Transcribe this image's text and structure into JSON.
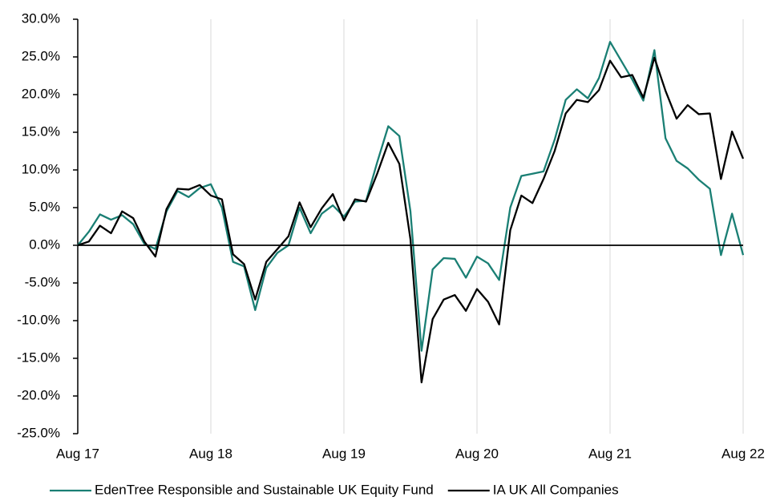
{
  "chart_data": {
    "type": "line",
    "categories": [
      "Aug 17",
      null,
      null,
      null,
      null,
      null,
      null,
      null,
      null,
      null,
      null,
      null,
      "Aug 18",
      null,
      null,
      null,
      null,
      null,
      null,
      null,
      null,
      null,
      null,
      null,
      "Aug 19",
      null,
      null,
      null,
      null,
      null,
      null,
      null,
      null,
      null,
      null,
      null,
      "Aug 20",
      null,
      null,
      null,
      null,
      null,
      null,
      null,
      null,
      null,
      null,
      null,
      "Aug 21",
      null,
      null,
      null,
      null,
      null,
      null,
      null,
      null,
      null,
      null,
      null,
      "Aug 22"
    ],
    "series": [
      {
        "name": "EdenTree Responsible and Sustainable UK Equity Fund",
        "color": "#1a7f74",
        "values": [
          0.0,
          1.8,
          4.1,
          3.4,
          4.0,
          2.8,
          0.2,
          -0.5,
          4.5,
          7.2,
          6.4,
          7.6,
          8.1,
          5.0,
          -2.2,
          -2.8,
          -8.6,
          -3.0,
          -1.0,
          0.0,
          5.0,
          1.6,
          4.2,
          5.3,
          3.8,
          5.8,
          5.9,
          11.0,
          15.8,
          14.5,
          4.5,
          -14.0,
          -3.2,
          -1.7,
          -1.8,
          -4.3,
          -1.5,
          -2.4,
          -4.6,
          5.0,
          9.2,
          9.5,
          9.8,
          14.0,
          19.3,
          20.7,
          19.5,
          22.2,
          27.0,
          24.5,
          22.0,
          19.2,
          25.9,
          14.2,
          11.2,
          10.2,
          8.7,
          7.5,
          -1.3,
          4.2,
          -1.3
        ]
      },
      {
        "name": "IA UK All Companies",
        "color": "#000000",
        "values": [
          0.0,
          0.5,
          2.6,
          1.6,
          4.5,
          3.6,
          0.5,
          -1.5,
          4.8,
          7.5,
          7.4,
          8.0,
          6.6,
          6.1,
          -1.2,
          -2.5,
          -7.2,
          -2.2,
          -0.5,
          1.2,
          5.7,
          2.4,
          4.9,
          6.8,
          3.3,
          6.1,
          5.8,
          9.5,
          13.6,
          10.8,
          0.8,
          -18.2,
          -9.8,
          -7.2,
          -6.6,
          -8.7,
          -5.8,
          -7.5,
          -10.5,
          2.0,
          6.6,
          5.6,
          8.8,
          12.5,
          17.5,
          19.3,
          19.0,
          20.6,
          24.5,
          22.3,
          22.6,
          19.6,
          24.9,
          20.5,
          16.8,
          18.6,
          17.4,
          17.5,
          8.8,
          15.1,
          11.5
        ]
      }
    ],
    "ylim": [
      -25,
      30
    ],
    "yticks": [
      {
        "value": -25,
        "label": "-25.0%"
      },
      {
        "value": -20,
        "label": "-20.0%"
      },
      {
        "value": -15,
        "label": "-15.0%"
      },
      {
        "value": -10,
        "label": "-10.0%"
      },
      {
        "value": -5,
        "label": "-5.0%"
      },
      {
        "value": 0,
        "label": "0.0%"
      },
      {
        "value": 5,
        "label": "5.0%"
      },
      {
        "value": 10,
        "label": "10.0%"
      },
      {
        "value": 15,
        "label": "15.0%"
      },
      {
        "value": 20,
        "label": "20.0%"
      },
      {
        "value": 25,
        "label": "25.0%"
      },
      {
        "value": 30,
        "label": "30.0%"
      }
    ],
    "grid": true,
    "legend": "bottom"
  }
}
